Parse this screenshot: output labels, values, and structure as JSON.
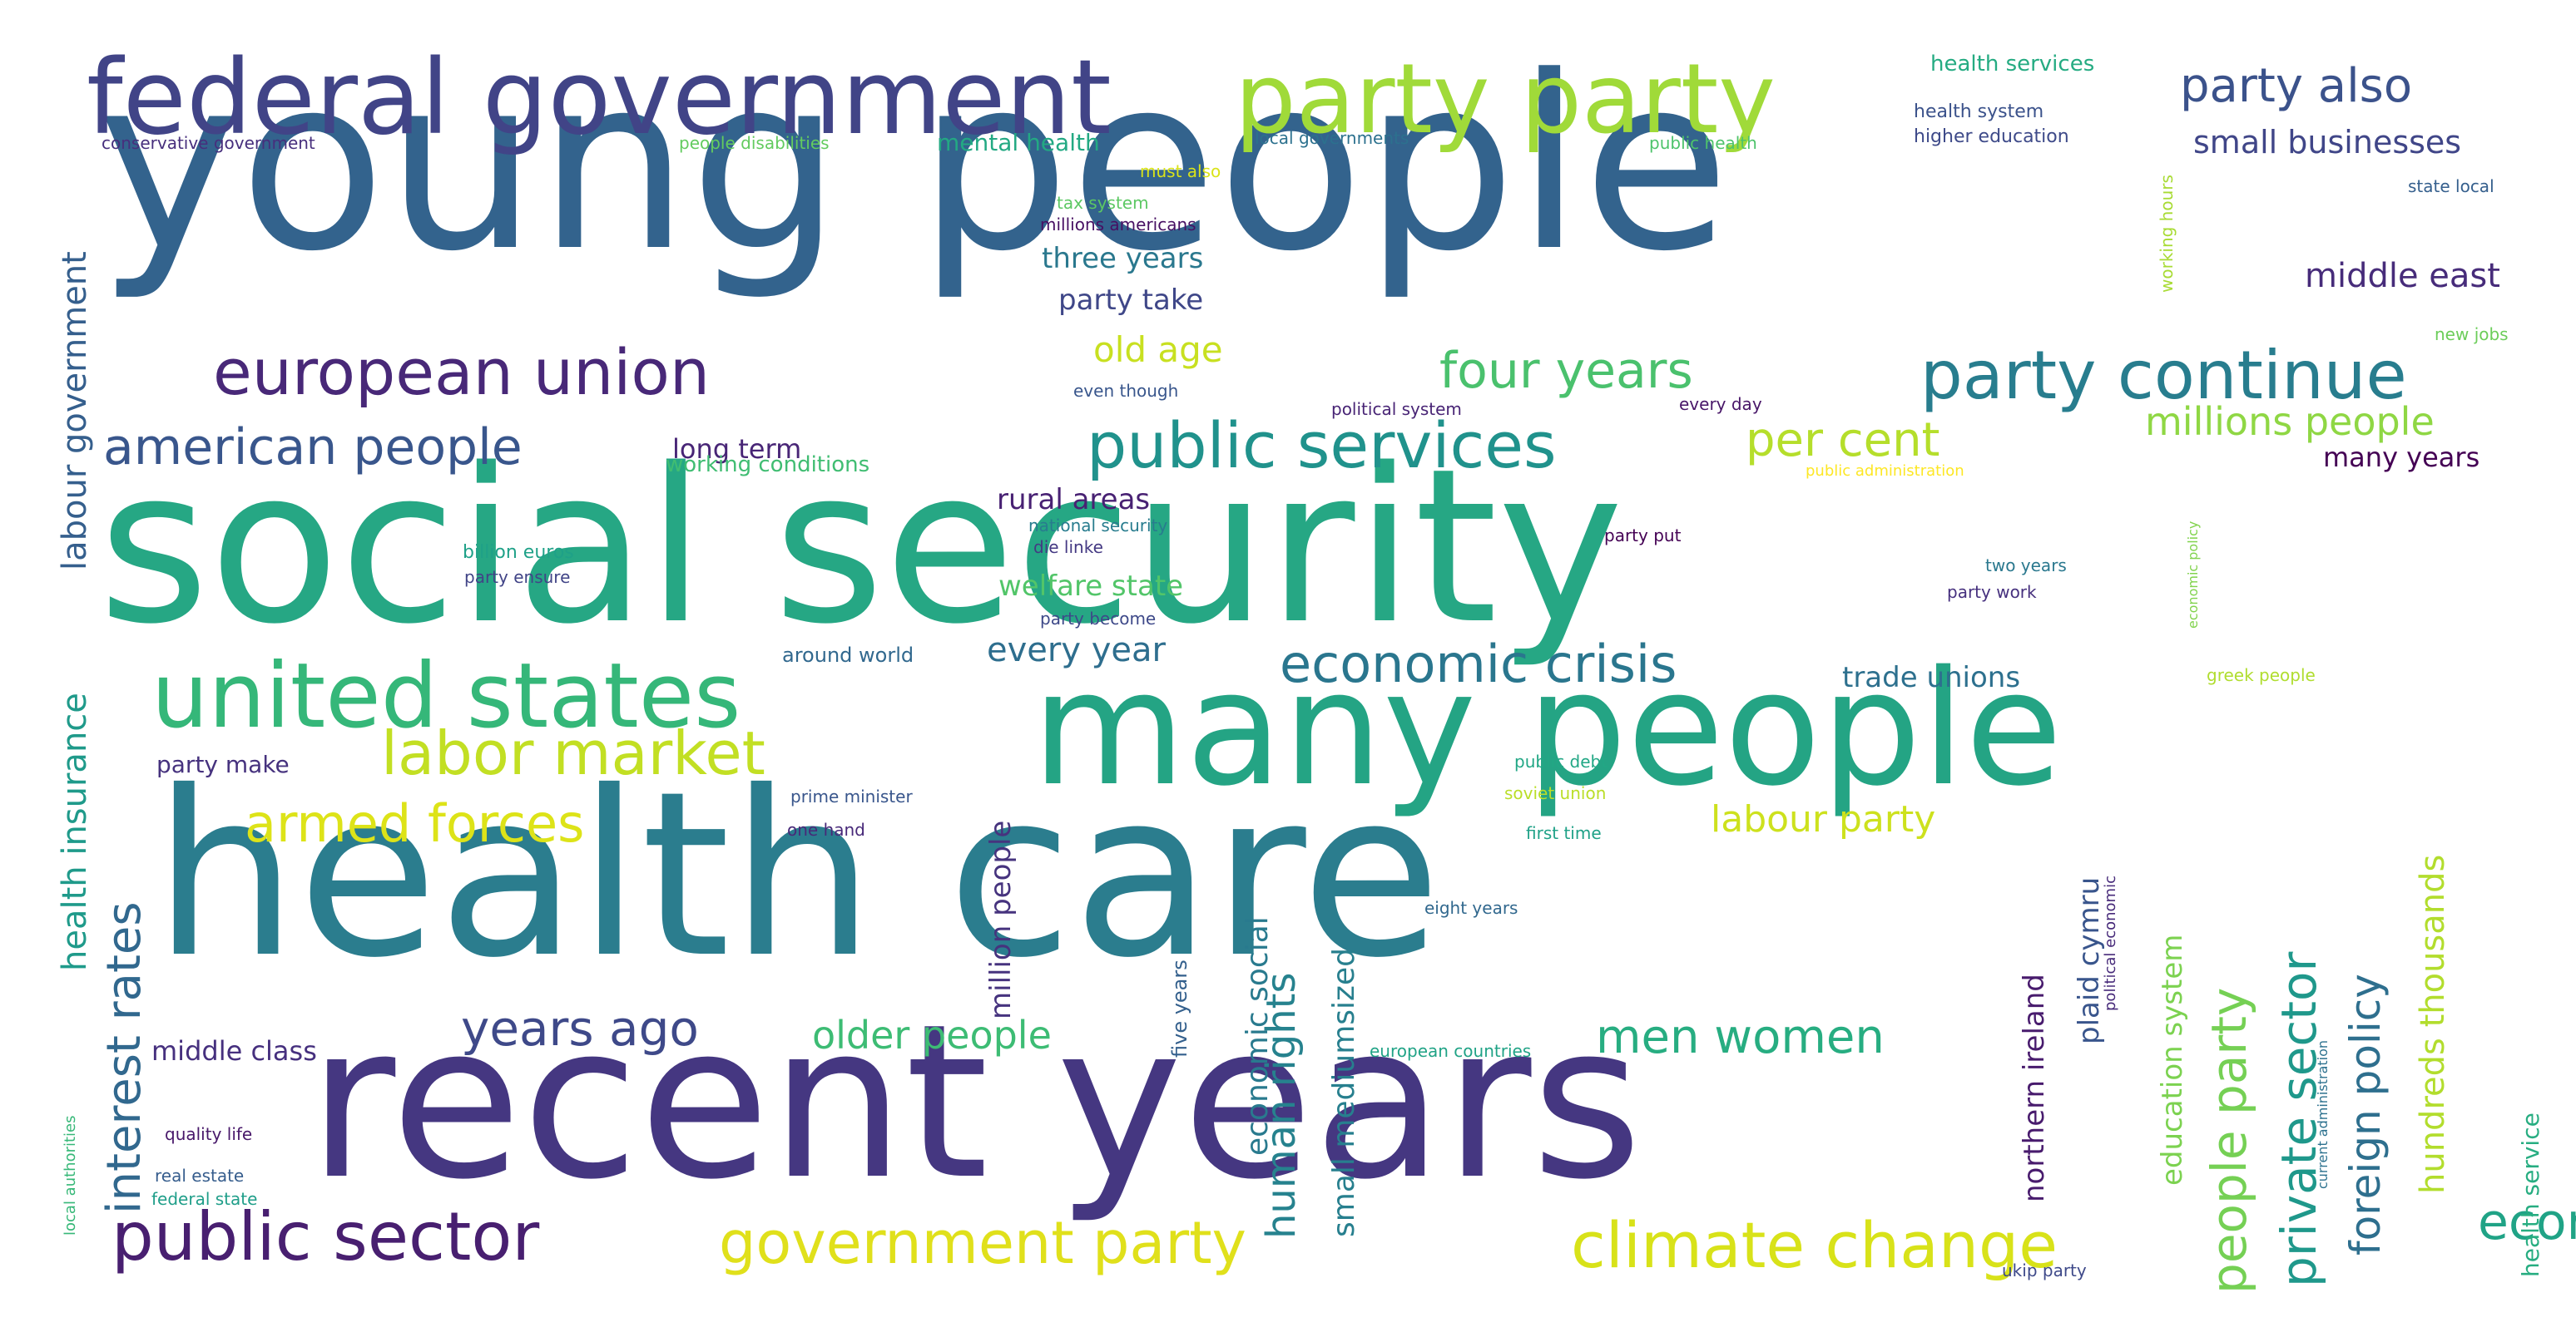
{
  "words": [
    {
      "text": "young people",
      "color": "#33638d"
    },
    {
      "text": "social security",
      "color": "#26a784"
    },
    {
      "text": "health care",
      "color": "#2b7d8e"
    },
    {
      "text": "recent years",
      "color": "#453781"
    },
    {
      "text": "many people",
      "color": "#24a484"
    },
    {
      "text": "federal government",
      "color": "#414487"
    },
    {
      "text": "party party",
      "color": "#a0da39"
    },
    {
      "text": "united states",
      "color": "#35b779"
    },
    {
      "text": "european union",
      "color": "#482878"
    },
    {
      "text": "public services",
      "color": "#20928c"
    },
    {
      "text": "party continue",
      "color": "#287d8e"
    },
    {
      "text": "labor market",
      "color": "#c2df23"
    },
    {
      "text": "public sector",
      "color": "#481f70"
    },
    {
      "text": "government party",
      "color": "#e0e01b"
    },
    {
      "text": "climate change",
      "color": "#d8e219"
    },
    {
      "text": "american people",
      "color": "#39568c"
    },
    {
      "text": "economic crisis",
      "color": "#2a768e"
    },
    {
      "text": "four years",
      "color": "#4ac16d"
    },
    {
      "text": "armed forces",
      "color": "#dde318"
    },
    {
      "text": "economic growth",
      "color": "#20a386"
    },
    {
      "text": "years ago",
      "color": "#3e4989"
    },
    {
      "text": "men women",
      "color": "#27ad81"
    },
    {
      "text": "per cent",
      "color": "#b5de2b"
    },
    {
      "text": "party also",
      "color": "#3b528b"
    },
    {
      "text": "interest rates",
      "color": "#31688e"
    },
    {
      "text": "human rights",
      "color": "#26828e"
    },
    {
      "text": "private sector",
      "color": "#1f988b"
    },
    {
      "text": "foreign policy",
      "color": "#2e6f8e"
    },
    {
      "text": "people party",
      "color": "#75d054"
    },
    {
      "text": "millions people",
      "color": "#8fd744"
    },
    {
      "text": "labour party",
      "color": "#cde11d"
    },
    {
      "text": "older people",
      "color": "#3dbc74"
    },
    {
      "text": "small businesses",
      "color": "#404688"
    },
    {
      "text": "middle east",
      "color": "#472c7a"
    },
    {
      "text": "old age",
      "color": "#c8e020"
    },
    {
      "text": "three years",
      "color": "#2a788e"
    },
    {
      "text": "party take",
      "color": "#3f4788"
    },
    {
      "text": "welfare state",
      "color": "#52c569"
    },
    {
      "text": "every year",
      "color": "#2e6e8e"
    },
    {
      "text": "rural areas",
      "color": "#482173"
    },
    {
      "text": "trade unions",
      "color": "#2d708e"
    },
    {
      "text": "economic social",
      "color": "#297a8e"
    },
    {
      "text": "small mediumsized",
      "color": "#277f8e"
    },
    {
      "text": "hundreds thousands",
      "color": "#b2dd2d"
    },
    {
      "text": "million people",
      "color": "#46337e"
    },
    {
      "text": "northern ireland",
      "color": "#481b6d"
    },
    {
      "text": "plaid cymru",
      "color": "#39558c"
    },
    {
      "text": "education system",
      "color": "#7cd250"
    },
    {
      "text": "labour government",
      "color": "#355f8d"
    },
    {
      "text": "health insurance",
      "color": "#1f9a8a"
    },
    {
      "text": "long term",
      "color": "#482576"
    },
    {
      "text": "many years",
      "color": "#440154"
    },
    {
      "text": "middle class",
      "color": "#46307e"
    },
    {
      "text": "party make",
      "color": "#46327e"
    },
    {
      "text": "health service",
      "color": "#27ad81"
    },
    {
      "text": "health services",
      "color": "#25ab82"
    },
    {
      "text": "health system",
      "color": "#3b528b"
    },
    {
      "text": "higher education",
      "color": "#3e4a89"
    },
    {
      "text": "mental health",
      "color": "#23a983"
    },
    {
      "text": "state local",
      "color": "#355f8d"
    },
    {
      "text": "working conditions",
      "color": "#40bd72"
    },
    {
      "text": "around world",
      "color": "#31688e"
    },
    {
      "text": "five years",
      "color": "#34608d"
    },
    {
      "text": "conservative government",
      "color": "#472f7d"
    },
    {
      "text": "people disabilities",
      "color": "#63cb5f"
    },
    {
      "text": "local governments",
      "color": "#2c718e"
    },
    {
      "text": "public health",
      "color": "#4ec36b"
    },
    {
      "text": "must also",
      "color": "#dae319"
    },
    {
      "text": "tax system",
      "color": "#5cc863"
    },
    {
      "text": "millions americans",
      "color": "#471063"
    },
    {
      "text": "working hours",
      "color": "#a8db34"
    },
    {
      "text": "new jobs",
      "color": "#6ccd5a"
    },
    {
      "text": "even though",
      "color": "#39568c"
    },
    {
      "text": "political system",
      "color": "#482475"
    },
    {
      "text": "every day",
      "color": "#481668"
    },
    {
      "text": "public administration",
      "color": "#fde725"
    },
    {
      "text": "economic policy",
      "color": "#81d34d"
    },
    {
      "text": "billion euros",
      "color": "#1fa188"
    },
    {
      "text": "national security",
      "color": "#287c8e"
    },
    {
      "text": "party put",
      "color": "#440154"
    },
    {
      "text": "die linke",
      "color": "#443983"
    },
    {
      "text": "party ensure",
      "color": "#414487"
    },
    {
      "text": "two years",
      "color": "#2a788e"
    },
    {
      "text": "party work",
      "color": "#46307e"
    },
    {
      "text": "party become",
      "color": "#3e4989"
    },
    {
      "text": "greek people",
      "color": "#b0dd2f"
    },
    {
      "text": "public debt",
      "color": "#22a785"
    },
    {
      "text": "soviet union",
      "color": "#bade28"
    },
    {
      "text": "prime minister",
      "color": "#39568c"
    },
    {
      "text": "one hand",
      "color": "#482979"
    },
    {
      "text": "first time",
      "color": "#1fa187"
    },
    {
      "text": "political economic",
      "color": "#472a7a"
    },
    {
      "text": "current administration",
      "color": "#2c718e"
    },
    {
      "text": "eight years",
      "color": "#31688e"
    },
    {
      "text": "european countries",
      "color": "#20a386"
    },
    {
      "text": "quality life",
      "color": "#48186a"
    },
    {
      "text": "real estate",
      "color": "#365d8d"
    },
    {
      "text": "federal state",
      "color": "#1f9e89"
    },
    {
      "text": "local authorities",
      "color": "#37b878"
    },
    {
      "text": "ukip party",
      "color": "#3e4989"
    }
  ]
}
